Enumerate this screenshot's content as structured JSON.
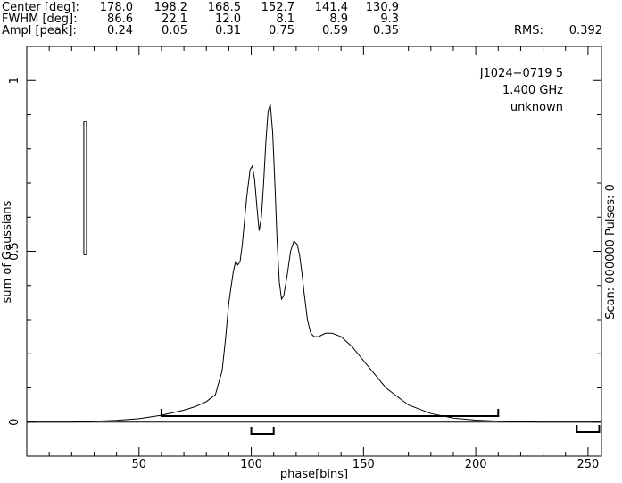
{
  "header": {
    "rows": [
      {
        "label": "Center [deg]:",
        "values": [
          "178.0",
          "198.2",
          "168.5",
          "152.7",
          "141.4",
          "130.9"
        ]
      },
      {
        "label": "FWHM  [deg]:",
        "values": [
          "86.6",
          "22.1",
          "12.0",
          "8.1",
          "8.9",
          "9.3"
        ]
      },
      {
        "label": "Ampl  [peak]:",
        "values": [
          "0.24",
          "0.05",
          "0.31",
          "0.75",
          "0.59",
          "0.35"
        ]
      }
    ],
    "rms_label": "RMS:",
    "rms_value": "0.392"
  },
  "annotation": {
    "source": "J1024−0719 5",
    "frequency": "1.400 GHz",
    "status": "unknown"
  },
  "right_label": "Scan: 000000   Pulses: 0",
  "chart_data": {
    "type": "line",
    "xlabel": "phase[bins]",
    "ylabel": "sum of Gaussians",
    "xlim": [
      0,
      256
    ],
    "ylim": [
      -0.1,
      1.1
    ],
    "x_ticks": [
      50,
      100,
      150,
      200,
      250
    ],
    "y_ticks": [
      0,
      0.5,
      1
    ],
    "y_tick_labels": [
      "0",
      "0.5",
      "1"
    ],
    "series": [
      {
        "x": [
          0,
          20,
          40,
          50,
          60,
          70,
          75,
          80,
          84,
          87,
          88.5,
          90,
          92,
          93,
          94,
          95,
          96,
          98,
          99.5,
          100.5,
          101.5,
          102.5,
          103.5,
          104.5,
          105.5,
          106.5,
          107.5,
          108.5,
          109.5,
          110.5,
          111.5,
          112.5,
          113.5,
          114.5,
          116,
          117.5,
          119,
          120.5,
          121.5,
          122.5,
          123.5,
          125,
          126.5,
          128,
          130,
          133,
          136,
          140,
          145,
          150,
          155,
          160,
          170,
          180,
          190,
          200,
          210,
          220,
          230,
          240,
          256
        ],
        "y": [
          0,
          0,
          0.005,
          0.01,
          0.02,
          0.035,
          0.045,
          0.06,
          0.08,
          0.15,
          0.24,
          0.35,
          0.44,
          0.47,
          0.46,
          0.47,
          0.52,
          0.66,
          0.74,
          0.75,
          0.71,
          0.63,
          0.56,
          0.6,
          0.7,
          0.82,
          0.91,
          0.93,
          0.85,
          0.7,
          0.53,
          0.41,
          0.36,
          0.37,
          0.43,
          0.5,
          0.53,
          0.52,
          0.49,
          0.44,
          0.38,
          0.3,
          0.26,
          0.25,
          0.25,
          0.26,
          0.26,
          0.25,
          0.22,
          0.18,
          0.14,
          0.1,
          0.05,
          0.025,
          0.012,
          0.006,
          0.003,
          0.001,
          0,
          0,
          0
        ]
      }
    ],
    "error_bar": {
      "x": 26,
      "y_low": 0.49,
      "y_high": 0.88
    },
    "windows": [
      {
        "x_start": 60,
        "x_end": 210
      },
      {
        "x_start": 100,
        "x_end": 110
      },
      {
        "x_start": 245,
        "x_end": 255
      }
    ]
  }
}
